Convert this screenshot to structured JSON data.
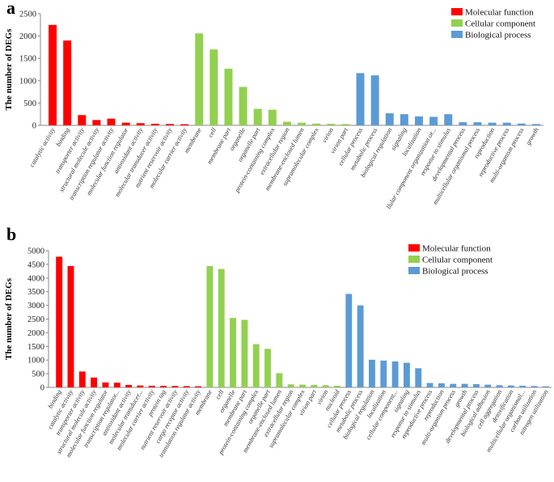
{
  "colors": {
    "molecular_function": "#ff0000",
    "cellular_component": "#92d050",
    "biological_process": "#5b9bd5"
  },
  "chart_data": [
    {
      "panel": "a",
      "type": "bar",
      "ylabel": "The number of DEGs",
      "ylim": [
        0,
        2500
      ],
      "yticks": [
        0,
        500,
        1000,
        1500,
        2000,
        2500
      ],
      "legend": [
        "Molecular function",
        "Cellular component",
        "Biological process"
      ],
      "categories": [
        "catalytic activity",
        "binding",
        "transporter activity",
        "structural molecule activity",
        "transcription regulator activity",
        "molecular function regulator",
        "antioxidant activity",
        "molecular transducer activity",
        "nutrient reservoir activity",
        "molecular carrier activity",
        "membrane",
        "cell",
        "membrane part",
        "organelle",
        "organelle part",
        "protein-containing complex",
        "extracellular region",
        "membrane-enclosed lumen",
        "supramolecular complex",
        "virion",
        "virion part",
        "cellular process",
        "metabolic process",
        "biological regulation",
        "signaling",
        "localization",
        "llular component organization or...",
        "response to stimulus",
        "developmental process",
        "multicellular organismal process",
        "reproduction",
        "reproductive process",
        "multi-organism process",
        "growth"
      ],
      "values": [
        2250,
        1900,
        230,
        120,
        150,
        60,
        50,
        35,
        30,
        25,
        2060,
        1700,
        1270,
        860,
        370,
        350,
        80,
        60,
        40,
        35,
        30,
        1170,
        1120,
        270,
        250,
        200,
        190,
        250,
        70,
        70,
        60,
        60,
        40,
        30
      ],
      "groups": [
        "molecular_function",
        "molecular_function",
        "molecular_function",
        "molecular_function",
        "molecular_function",
        "molecular_function",
        "molecular_function",
        "molecular_function",
        "molecular_function",
        "molecular_function",
        "cellular_component",
        "cellular_component",
        "cellular_component",
        "cellular_component",
        "cellular_component",
        "cellular_component",
        "cellular_component",
        "cellular_component",
        "cellular_component",
        "cellular_component",
        "cellular_component",
        "biological_process",
        "biological_process",
        "biological_process",
        "biological_process",
        "biological_process",
        "biological_process",
        "biological_process",
        "biological_process",
        "biological_process",
        "biological_process",
        "biological_process",
        "biological_process",
        "biological_process"
      ]
    },
    {
      "panel": "b",
      "type": "bar",
      "ylabel": "The number of DEGs",
      "ylim": [
        0,
        5000
      ],
      "yticks": [
        0,
        500,
        1000,
        1500,
        2000,
        2500,
        3000,
        3500,
        4000,
        4500,
        5000
      ],
      "legend": [
        "Molecular function",
        "Cellular component",
        "Biological process"
      ],
      "categories": [
        "binding",
        "catalytic activity",
        "transporter activity",
        "structural molecule activity",
        "molecular function regulator",
        "transcription regulator...",
        "antioxidant activity",
        "molecular transducer...",
        "molecular carrier activity",
        "protein tag",
        "nutrient reservoir activity",
        "cargo receptor activity",
        "translation regulator activity",
        "membrane",
        "cell",
        "organelle",
        "membrane part",
        "protein-containing complex",
        "organelle part",
        "membrane-enclosed lumen",
        "extracellular region",
        "supramolecular complex",
        "virion part",
        "virion",
        "nucleoid",
        "cellular process",
        "metabolic process",
        "biological regulation",
        "localization",
        "cellular component...",
        "signaling",
        "response to stimulus",
        "reproductive process",
        "reproduction",
        "multi-organism process",
        "growth",
        "developmental process",
        "biological adhesion",
        "cell aggregation",
        "detoxification",
        "multicellular organismal...",
        "carbon utilization",
        "nitrogen utilization"
      ],
      "values": [
        4780,
        4440,
        580,
        360,
        180,
        170,
        90,
        70,
        60,
        55,
        50,
        45,
        40,
        4440,
        4330,
        2540,
        2470,
        1580,
        1410,
        520,
        110,
        100,
        90,
        80,
        60,
        3420,
        3000,
        1010,
        980,
        950,
        900,
        700,
        160,
        150,
        130,
        130,
        120,
        100,
        80,
        70,
        60,
        50,
        40
      ],
      "groups": [
        "molecular_function",
        "molecular_function",
        "molecular_function",
        "molecular_function",
        "molecular_function",
        "molecular_function",
        "molecular_function",
        "molecular_function",
        "molecular_function",
        "molecular_function",
        "molecular_function",
        "molecular_function",
        "molecular_function",
        "cellular_component",
        "cellular_component",
        "cellular_component",
        "cellular_component",
        "cellular_component",
        "cellular_component",
        "cellular_component",
        "cellular_component",
        "cellular_component",
        "cellular_component",
        "cellular_component",
        "cellular_component",
        "biological_process",
        "biological_process",
        "biological_process",
        "biological_process",
        "biological_process",
        "biological_process",
        "biological_process",
        "biological_process",
        "biological_process",
        "biological_process",
        "biological_process",
        "biological_process",
        "biological_process",
        "biological_process",
        "biological_process",
        "biological_process",
        "biological_process",
        "biological_process"
      ]
    }
  ]
}
